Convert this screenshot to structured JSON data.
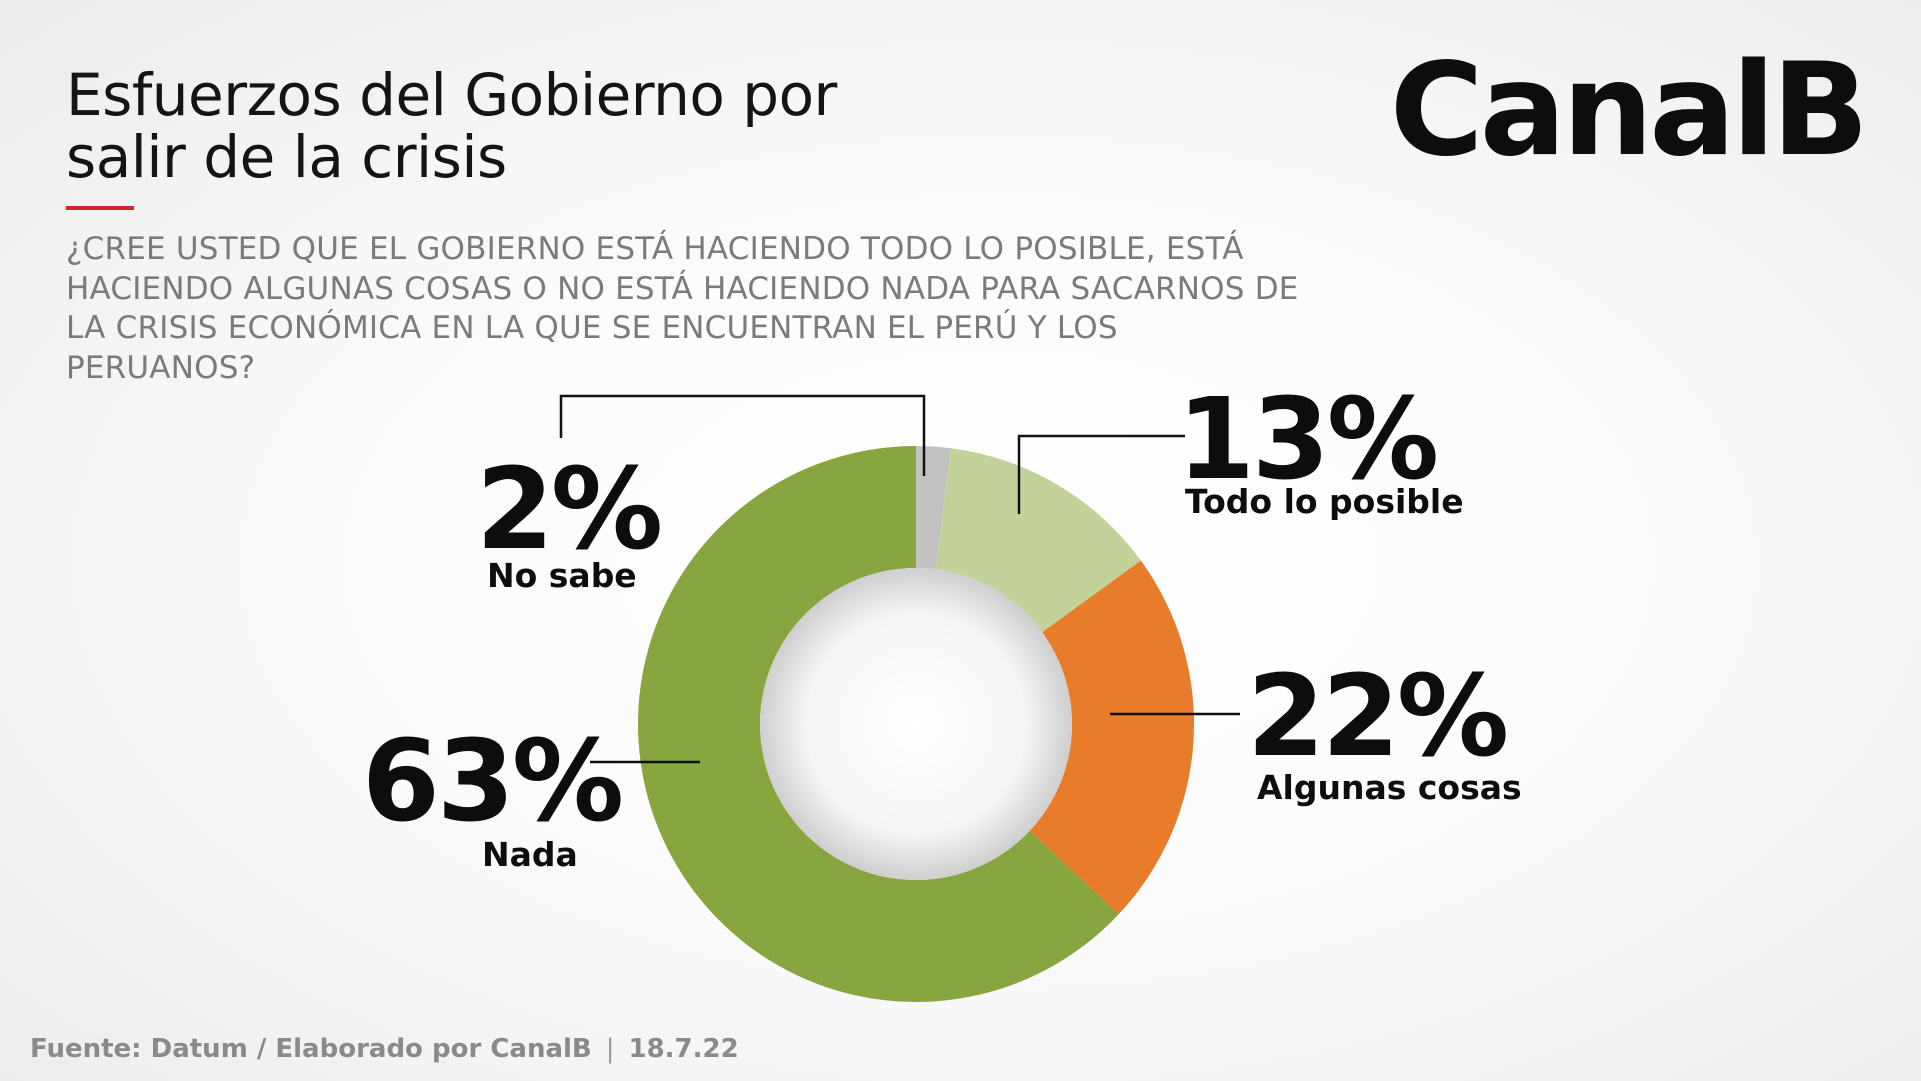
{
  "header": {
    "title_line1": "Esfuerzos del Gobierno por",
    "title_line2": "salir de la crisis",
    "question": "¿CREE USTED QUE EL GOBIERNO ESTÁ HACIENDO TODO LO POSIBLE, ESTÁ HACIENDO ALGUNAS COSAS O NO ESTÁ HACIENDO NADA PARA SACARNOS DE LA CRISIS ECONÓMICA EN LA QUE SE ENCUENTRAN EL PERÚ Y LOS PERUANOS?",
    "accent_color": "#d7262e"
  },
  "brand": {
    "logo": "CanalB"
  },
  "footer": {
    "source": "Fuente: Datum / Elaborado por CanalB",
    "separator": "|",
    "date": "18.7.22"
  },
  "chart_data": {
    "type": "pie",
    "variant": "donut",
    "start": "top",
    "direction": "clockwise",
    "slices": [
      {
        "label": "No sabe",
        "value": 2,
        "display": "2%",
        "color": "#c2c2c2"
      },
      {
        "label": "Todo lo posible",
        "value": 13,
        "display": "13%",
        "color": "#c3d19a"
      },
      {
        "label": "Algunas cosas",
        "value": 22,
        "display": "22%",
        "color": "#e97c2a"
      },
      {
        "label": "Nada",
        "value": 63,
        "display": "63%",
        "color": "#88a63f"
      }
    ]
  }
}
